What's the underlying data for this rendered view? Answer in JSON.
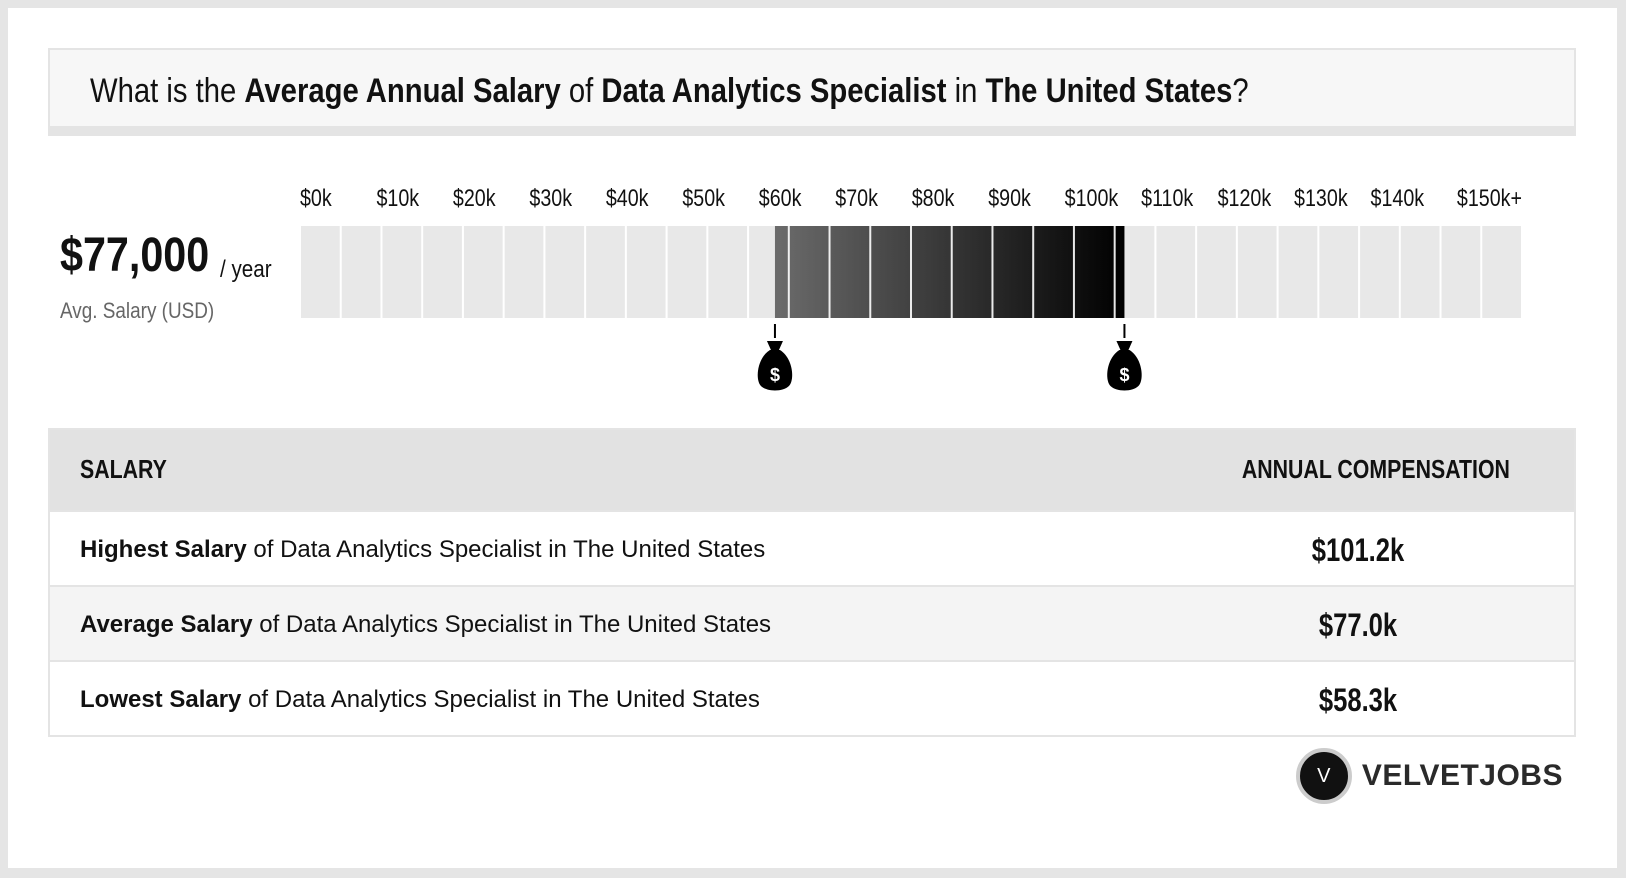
{
  "title": {
    "prefix": "What is the ",
    "metric": "Average Annual Salary",
    "of": " of ",
    "job": "Data Analytics Specialist",
    "in": " in ",
    "location": "The United States",
    "suffix": "?"
  },
  "summary": {
    "value": "$77,000",
    "unit": "/ year",
    "caption": "Avg. Salary (USD)"
  },
  "chart_data": {
    "type": "bar",
    "tick_labels": [
      "$0k",
      "$10k",
      "$20k",
      "$30k",
      "$40k",
      "$50k",
      "$60k",
      "$70k",
      "$80k",
      "$90k",
      "$100k",
      "$110k",
      "$120k",
      "$130k",
      "$140k",
      "$150k+"
    ],
    "x_range": [
      0,
      150
    ],
    "range_low": 58.3,
    "range_high": 101.2,
    "colors": {
      "cell_bg": "#e8e8e8",
      "gradient_start": "#6b6b6b",
      "gradient_end": "#000000",
      "marker": "#000000"
    }
  },
  "table": {
    "header_left": "SALARY",
    "header_right": "ANNUAL COMPENSATION",
    "rows": [
      {
        "bold": "Highest Salary",
        "rest": " of Data Analytics Specialist in The United States",
        "value": "$101.2k"
      },
      {
        "bold": "Average Salary",
        "rest": " of Data Analytics Specialist in The United States",
        "value": "$77.0k"
      },
      {
        "bold": "Lowest Salary",
        "rest": " of Data Analytics Specialist in The United States",
        "value": "$58.3k"
      }
    ]
  },
  "logo": {
    "letter": "V",
    "text": "VELVETJOBS"
  }
}
